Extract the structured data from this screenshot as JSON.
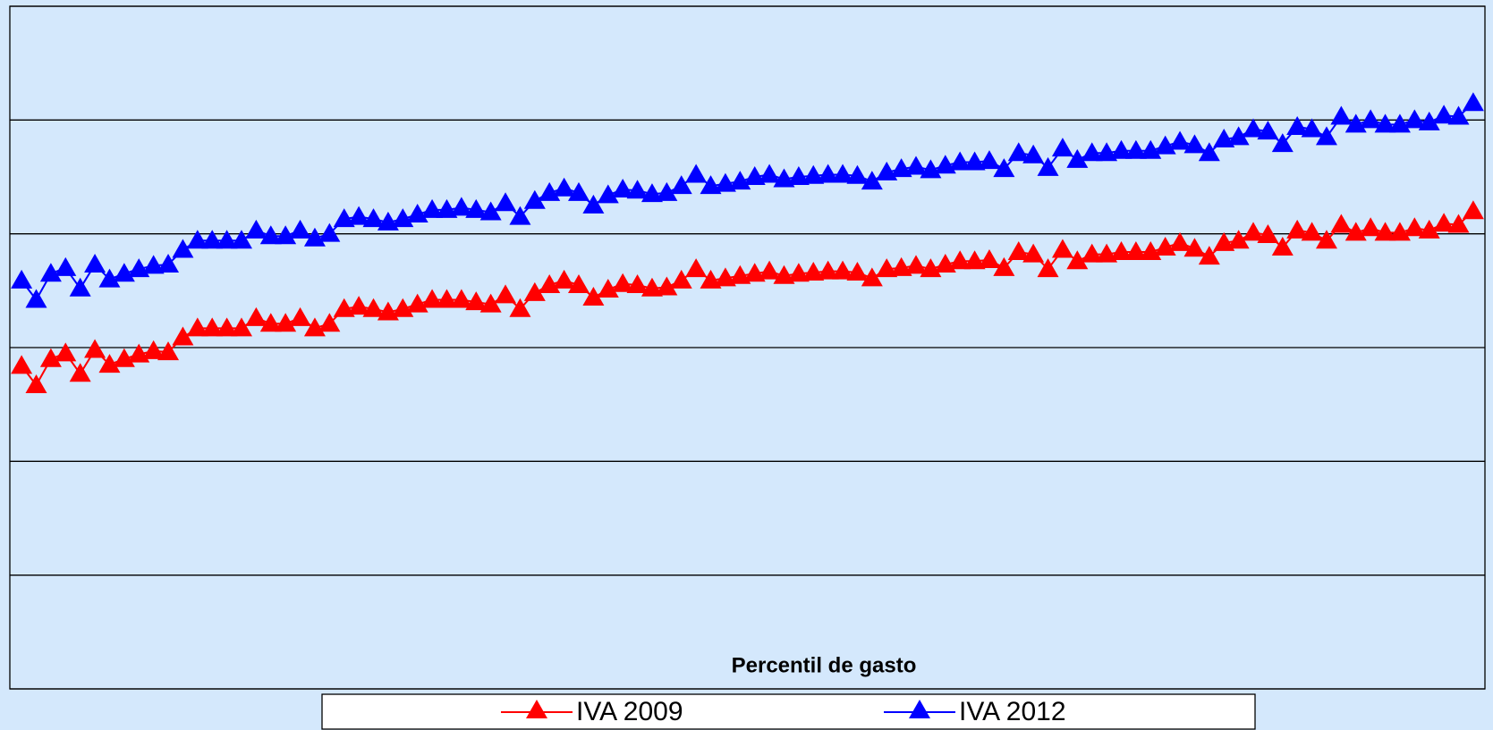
{
  "chart_data": {
    "type": "line",
    "x_label": "Percentil de gasto",
    "x": [
      1,
      2,
      3,
      4,
      5,
      6,
      7,
      8,
      9,
      10,
      11,
      12,
      13,
      14,
      15,
      16,
      17,
      18,
      19,
      20,
      21,
      22,
      23,
      24,
      25,
      26,
      27,
      28,
      29,
      30,
      31,
      32,
      33,
      34,
      35,
      36,
      37,
      38,
      39,
      40,
      41,
      42,
      43,
      44,
      45,
      46,
      47,
      48,
      49,
      50,
      51,
      52,
      53,
      54,
      55,
      56,
      57,
      58,
      59,
      60,
      61,
      62,
      63,
      64,
      65,
      66,
      67,
      68,
      69,
      70,
      71,
      72,
      73,
      74,
      75,
      76,
      77,
      78,
      79,
      80,
      81,
      82,
      83,
      84,
      85,
      86,
      87,
      88,
      89,
      90,
      91,
      92,
      93,
      94,
      95,
      96,
      97,
      98,
      99,
      100
    ],
    "xlim": [
      0.2,
      100.8
    ],
    "ylim": [
      0,
      6
    ],
    "yticks": [
      0,
      1,
      2,
      3,
      4,
      5,
      6
    ],
    "grid": true,
    "legend": "bottom",
    "series": [
      {
        "name": "IVA 2009",
        "color": "#ff0000",
        "values": [
          2.84,
          2.67,
          2.9,
          2.95,
          2.77,
          2.98,
          2.85,
          2.9,
          2.94,
          2.97,
          2.96,
          3.09,
          3.17,
          3.17,
          3.17,
          3.17,
          3.26,
          3.21,
          3.21,
          3.26,
          3.17,
          3.21,
          3.34,
          3.36,
          3.34,
          3.31,
          3.34,
          3.38,
          3.42,
          3.42,
          3.42,
          3.4,
          3.38,
          3.46,
          3.34,
          3.48,
          3.55,
          3.59,
          3.55,
          3.44,
          3.51,
          3.56,
          3.55,
          3.52,
          3.53,
          3.59,
          3.69,
          3.59,
          3.61,
          3.63,
          3.65,
          3.67,
          3.63,
          3.65,
          3.66,
          3.67,
          3.67,
          3.66,
          3.61,
          3.69,
          3.7,
          3.72,
          3.69,
          3.73,
          3.76,
          3.76,
          3.77,
          3.7,
          3.84,
          3.82,
          3.69,
          3.86,
          3.76,
          3.82,
          3.82,
          3.84,
          3.84,
          3.84,
          3.88,
          3.92,
          3.87,
          3.8,
          3.92,
          3.94,
          4.01,
          3.99,
          3.88,
          4.03,
          4.01,
          3.94,
          4.08,
          4.01,
          4.05,
          4.01,
          4.01,
          4.05,
          4.03,
          4.09,
          4.08,
          4.2
        ]
      },
      {
        "name": "IVA 2012",
        "color": "#0000ff",
        "values": [
          3.59,
          3.42,
          3.65,
          3.7,
          3.52,
          3.73,
          3.6,
          3.65,
          3.69,
          3.72,
          3.73,
          3.86,
          3.94,
          3.94,
          3.94,
          3.94,
          4.03,
          3.98,
          3.98,
          4.03,
          3.96,
          4.0,
          4.13,
          4.15,
          4.13,
          4.1,
          4.13,
          4.17,
          4.21,
          4.21,
          4.23,
          4.21,
          4.19,
          4.27,
          4.15,
          4.29,
          4.36,
          4.4,
          4.36,
          4.25,
          4.34,
          4.39,
          4.38,
          4.35,
          4.36,
          4.42,
          4.52,
          4.42,
          4.44,
          4.46,
          4.5,
          4.52,
          4.48,
          4.5,
          4.51,
          4.52,
          4.52,
          4.51,
          4.46,
          4.54,
          4.57,
          4.59,
          4.56,
          4.6,
          4.63,
          4.63,
          4.64,
          4.57,
          4.71,
          4.69,
          4.58,
          4.75,
          4.65,
          4.71,
          4.71,
          4.73,
          4.73,
          4.73,
          4.77,
          4.81,
          4.78,
          4.71,
          4.83,
          4.85,
          4.92,
          4.9,
          4.79,
          4.94,
          4.92,
          4.85,
          5.03,
          4.96,
          5.0,
          4.96,
          4.96,
          5.0,
          4.98,
          5.04,
          5.03,
          5.15
        ]
      }
    ]
  }
}
